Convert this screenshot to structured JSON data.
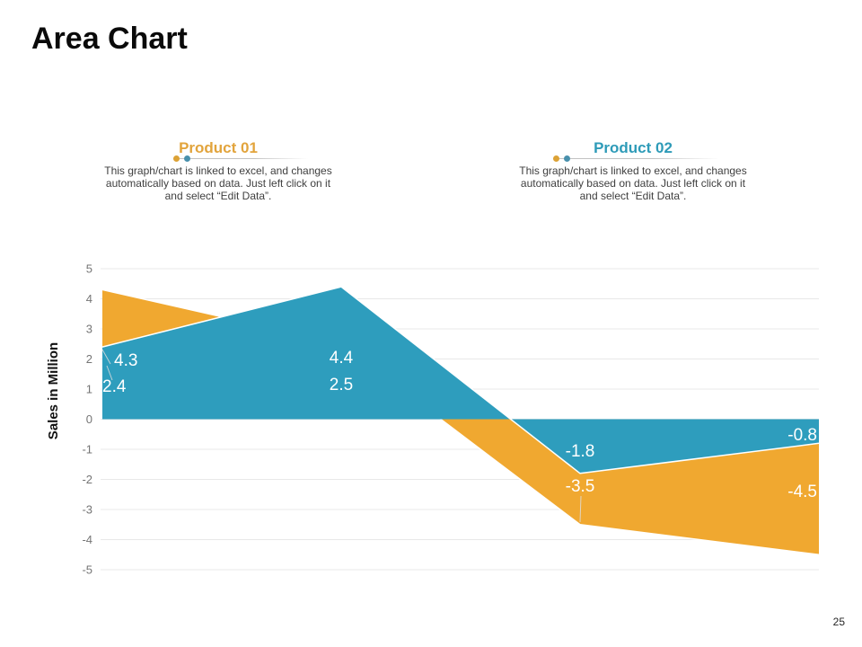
{
  "slide": {
    "title": "Area Chart",
    "page_number": "25"
  },
  "legends": [
    {
      "title": "Product 01",
      "title_color": "#E2A43C",
      "description": "This graph/chart is linked to excel, and changes automatically based on data. Just left click on it and select “Edit Data”."
    },
    {
      "title": "Product 02",
      "title_color": "#2E9BB8",
      "description": "This graph/chart is linked to excel, and changes automatically based on data. Just left click on it and select “Edit Data”."
    }
  ],
  "legend_marker_colors": {
    "orange": "#DCA236",
    "teal": "#4890AC"
  },
  "chart_data": {
    "type": "area",
    "series": [
      {
        "name": "Product 01",
        "color": "#F0A830",
        "values": [
          4.3,
          2.5,
          -3.5,
          -4.5
        ]
      },
      {
        "name": "Product 02",
        "color": "#2E9DBD",
        "values": [
          2.4,
          4.4,
          -1.8,
          -0.8
        ]
      }
    ],
    "ylabel": "Sales in Million",
    "ylim": [
      -5,
      5
    ],
    "yticks": [
      5,
      4,
      3,
      2,
      1,
      0,
      -1,
      -2,
      -3,
      -4,
      -5
    ],
    "grid": true,
    "data_labels": true,
    "legend_position": "none",
    "colors": {
      "gridline": "#e8e8e8",
      "tick_label": "#757575",
      "area_edge": "#ffffff"
    }
  }
}
